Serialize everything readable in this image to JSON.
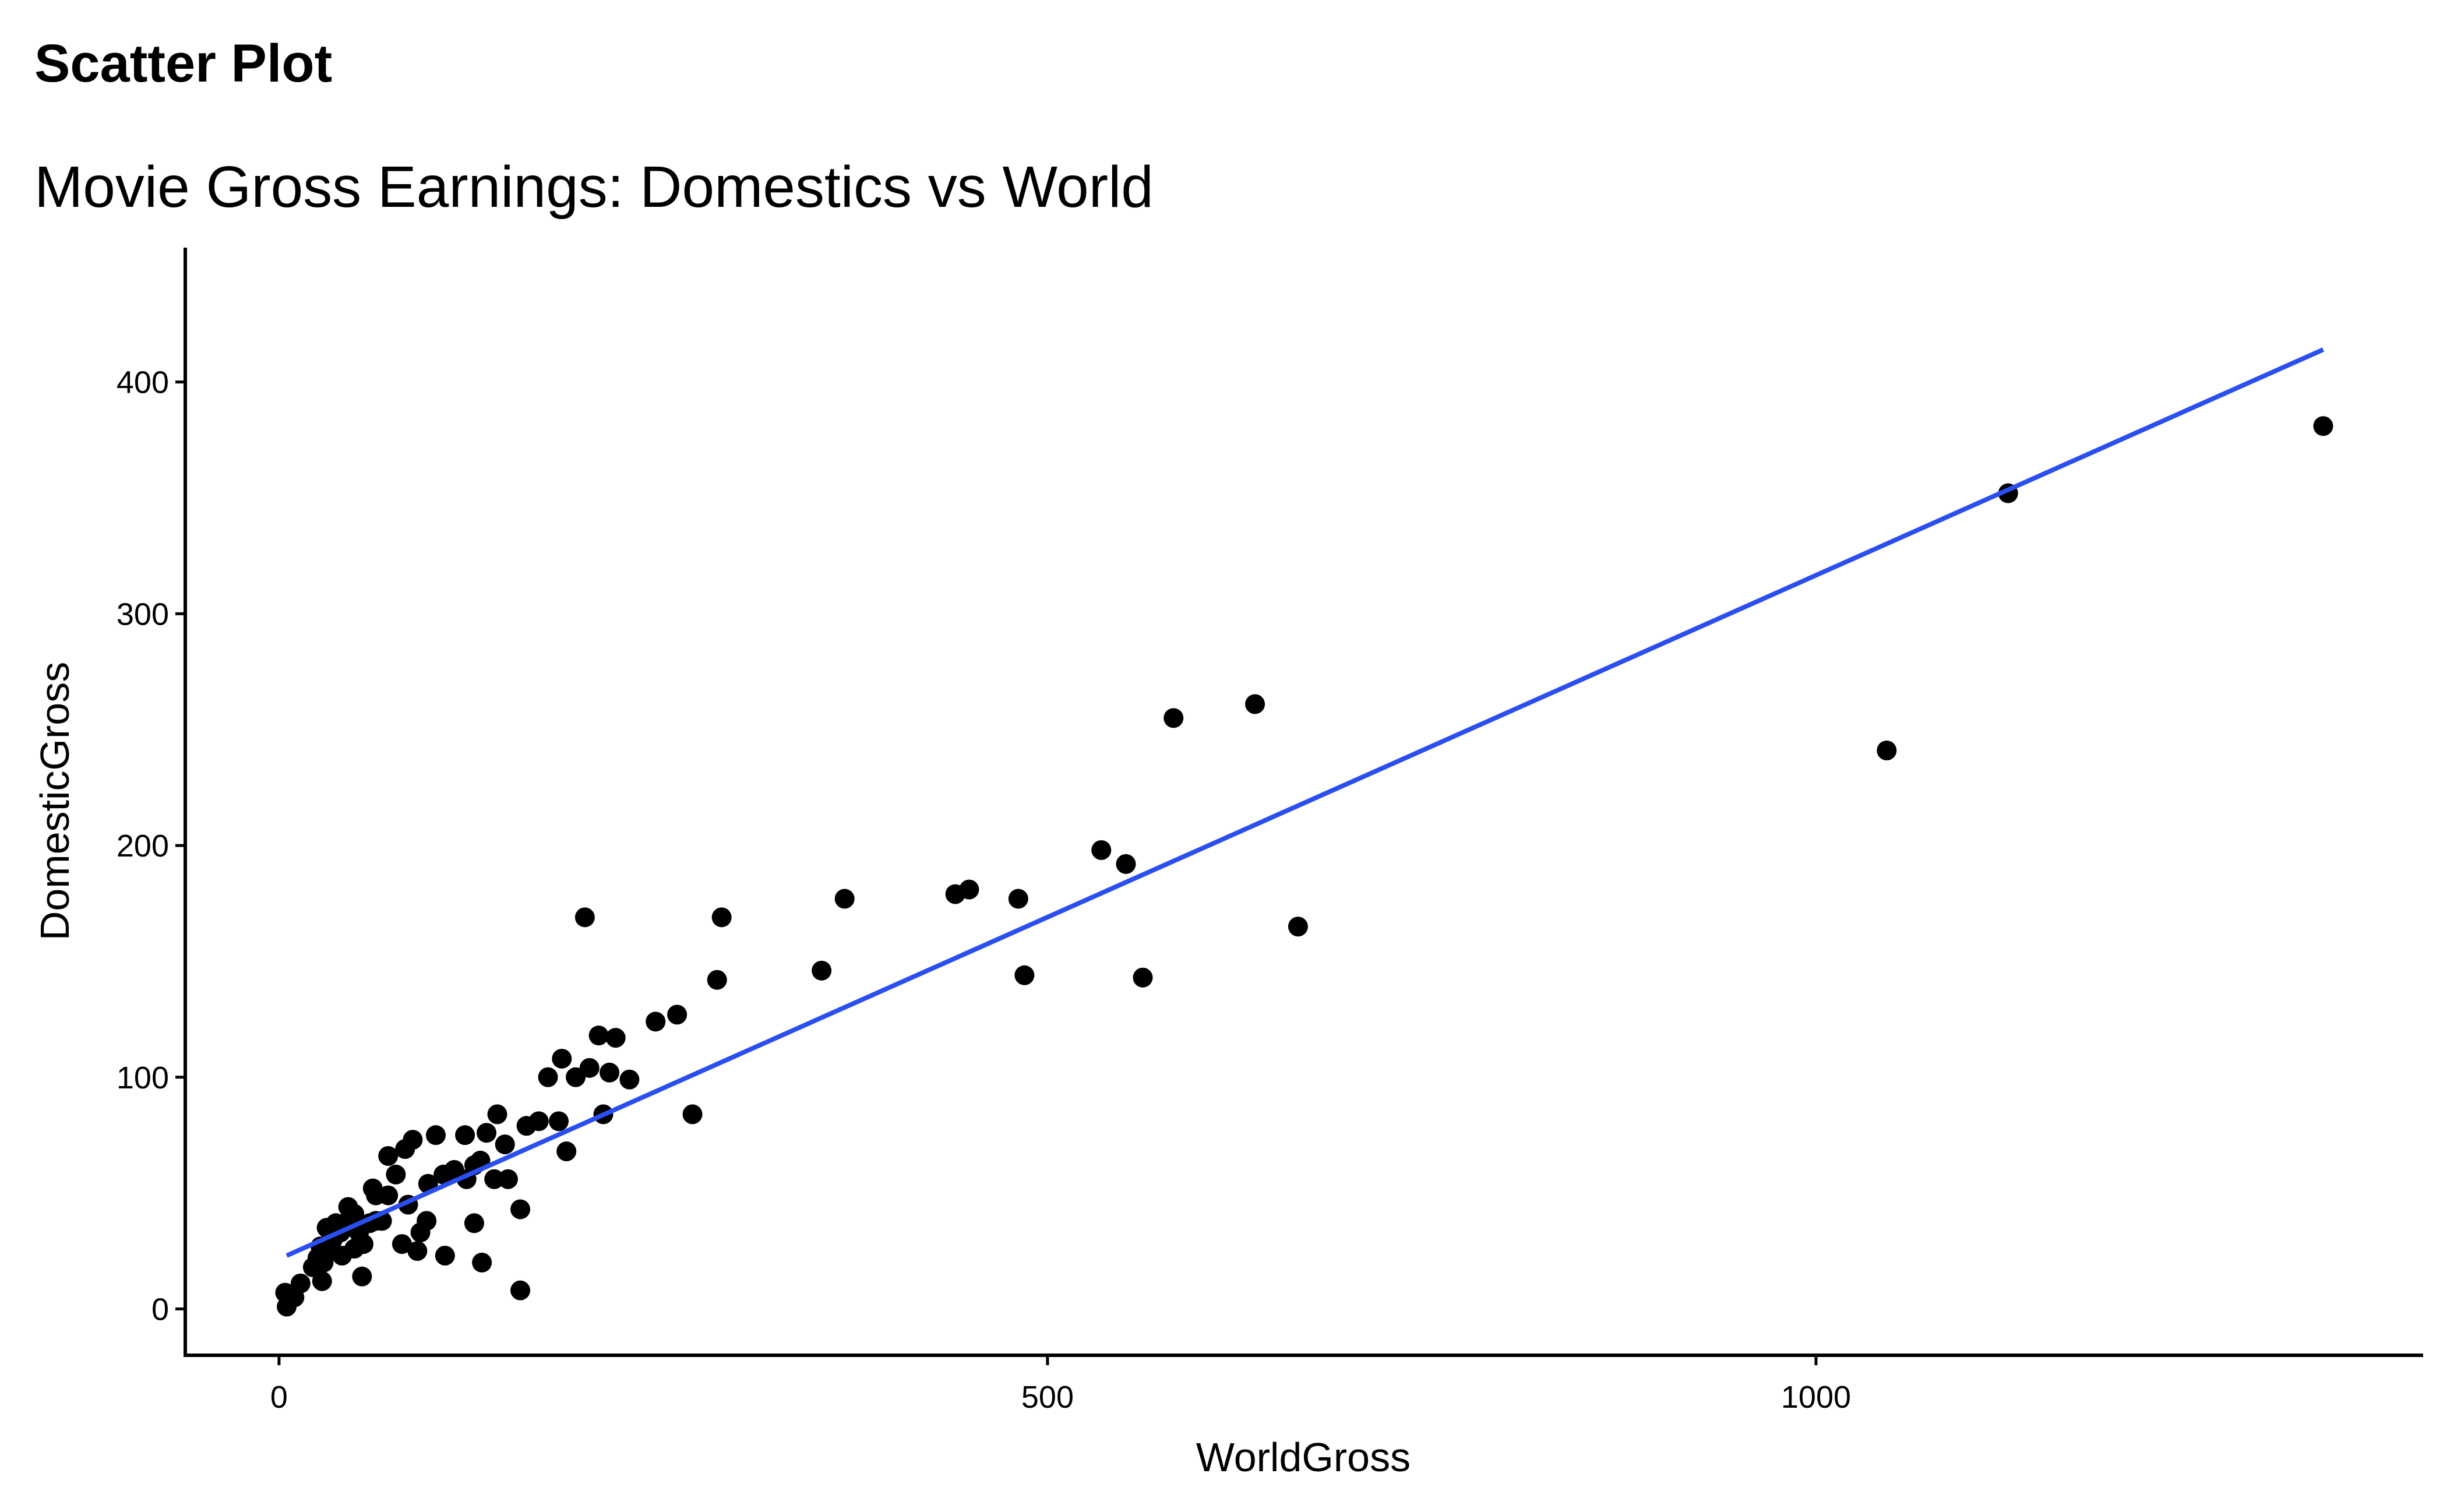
{
  "chart_data": {
    "type": "scatter",
    "title": "Scatter Plot",
    "subtitle": "Movie Gross Earnings: Domestics vs World",
    "x_label": "WorldGross",
    "y_label": "DomesticGross",
    "xlim": [
      -61,
      1395
    ],
    "ylim": [
      -20,
      458
    ],
    "xticks": [
      0,
      500,
      1000
    ],
    "yticks": [
      0,
      100,
      200,
      300,
      400
    ],
    "color": "#000000",
    "x": [
      1330,
      1125,
      1046,
      663,
      635,
      582,
      562,
      551,
      535,
      485,
      481,
      449,
      440,
      368,
      353,
      288,
      285,
      269,
      259,
      245,
      228,
      219,
      208,
      215,
      211,
      202,
      199,
      193,
      184,
      175,
      182,
      187,
      169,
      161,
      157,
      157,
      149,
      147,
      142,
      140,
      135,
      132,
      131,
      127,
      127,
      121,
      122,
      114,
      107,
      108,
      102,
      97,
      96,
      92,
      90,
      87,
      82,
      84,
      80,
      76,
      71,
      71,
      67,
      63,
      61,
      59,
      54,
      52,
      49,
      45,
      43,
      40,
      37,
      35,
      33,
      31,
      29,
      27,
      25,
      28,
      22,
      14,
      10,
      5,
      4,
      49,
      41,
      55,
      63
    ],
    "y": [
      381,
      352,
      241,
      165,
      261,
      255,
      143,
      192,
      198,
      144,
      177,
      181,
      179,
      177,
      146,
      169,
      142,
      84,
      127,
      124,
      99,
      117,
      118,
      102,
      84,
      104,
      169,
      100,
      108,
      100,
      81,
      68,
      81,
      79,
      8,
      43,
      56,
      71,
      84,
      56,
      76,
      20,
      64,
      62,
      37,
      75,
      56,
      60,
      58,
      23,
      75,
      54,
      38,
      33,
      25,
      73,
      69,
      45,
      28,
      58,
      66,
      49,
      38,
      49,
      52,
      37,
      14,
      33,
      41,
      44,
      37,
      33,
      37,
      30,
      25,
      35,
      20,
      27,
      22,
      12,
      18,
      11,
      5,
      1,
      7,
      26,
      23,
      28,
      38
    ],
    "trend": {
      "color": "#2b4ef0",
      "x": [
        5,
        1330
      ],
      "y": [
        23,
        414
      ]
    }
  }
}
